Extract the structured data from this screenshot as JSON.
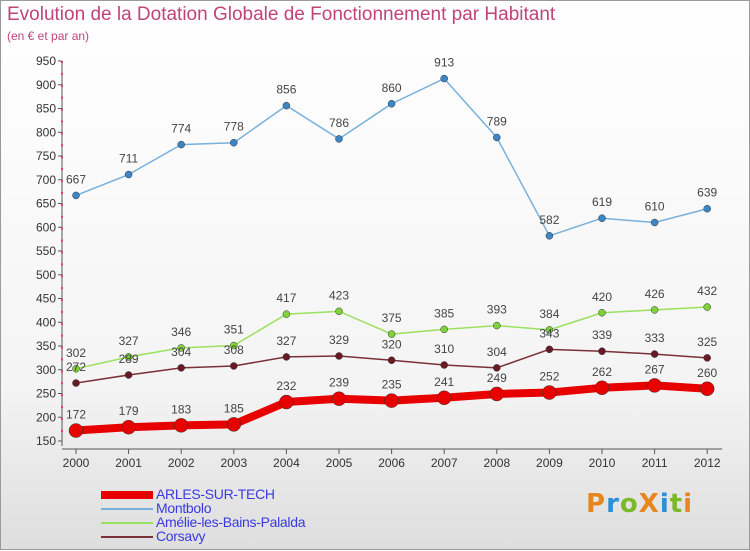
{
  "title": "Evolution de la Dotation Globale de Fonctionnement par Habitant",
  "subtitle": "(en € et par an)",
  "logo": {
    "text": "ProXiti",
    "colors": [
      "#e8861e",
      "#2a8fd6",
      "#7cb82a",
      "#e8861e",
      "#2a8fd6",
      "#7cb82a",
      "#e8861e"
    ]
  },
  "chart_data": {
    "type": "line",
    "x": [
      "2000",
      "2001",
      "2002",
      "2003",
      "2004",
      "2005",
      "2006",
      "2007",
      "2008",
      "2009",
      "2010",
      "2011",
      "2012"
    ],
    "ylim": [
      150,
      950
    ],
    "yticks": [
      150,
      200,
      250,
      300,
      350,
      400,
      450,
      500,
      550,
      600,
      650,
      700,
      750,
      800,
      850,
      900,
      950
    ],
    "grid": false,
    "legend_position": "bottom-left",
    "series": [
      {
        "name": "ARLES-SUR-TECH",
        "color": "#e80000",
        "line_color": "#e80000",
        "width": 8,
        "marker": 7,
        "values": [
          172,
          179,
          183,
          185,
          232,
          239,
          235,
          241,
          249,
          252,
          262,
          267,
          260
        ]
      },
      {
        "name": "Montbolo",
        "color": "#3d86c6",
        "line_color": "#78b0dc",
        "width": 1.5,
        "marker": 3.5,
        "values": [
          667,
          711,
          774,
          778,
          856,
          786,
          860,
          913,
          789,
          582,
          619,
          610,
          639
        ]
      },
      {
        "name": "Amélie-les-Bains-Palalda",
        "color": "#7fd23a",
        "line_color": "#9be05e",
        "width": 1.5,
        "marker": 3.5,
        "values": [
          302,
          327,
          346,
          351,
          417,
          423,
          375,
          385,
          393,
          384,
          420,
          426,
          432
        ]
      },
      {
        "name": "Corsavy",
        "color": "#6a1a24",
        "line_color": "#7a3038",
        "width": 1.5,
        "marker": 3.5,
        "values": [
          272,
          289,
          304,
          308,
          327,
          329,
          320,
          310,
          304,
          343,
          339,
          333,
          325
        ]
      }
    ]
  }
}
